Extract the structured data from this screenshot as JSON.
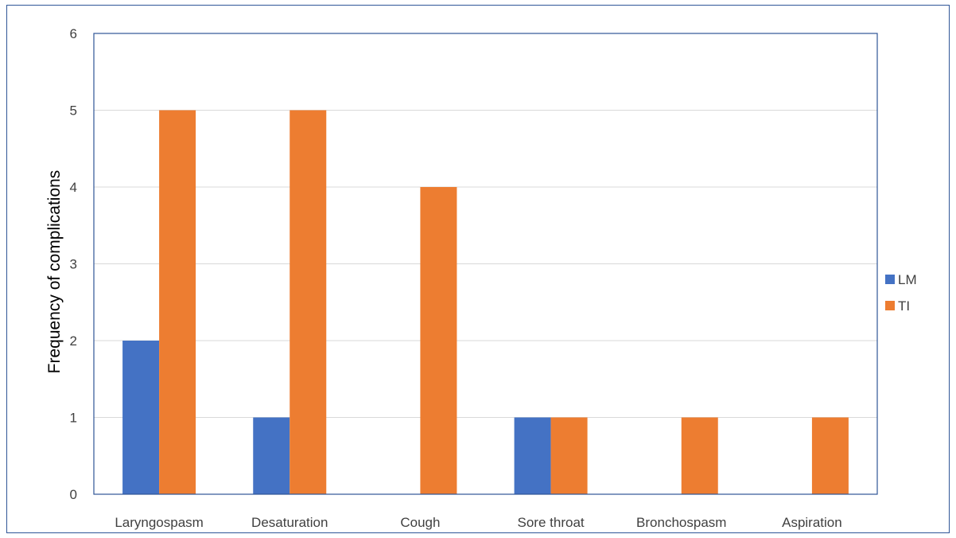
{
  "chart_data": {
    "type": "bar",
    "title": "",
    "xlabel": "",
    "ylabel": "Frequency of complications",
    "categories": [
      "Laryngospasm",
      "Desaturation",
      "Cough",
      "Sore throat",
      "Bronchospasm",
      "Aspiration"
    ],
    "series": [
      {
        "name": "LM",
        "values": [
          2,
          1,
          0,
          1,
          0,
          0
        ],
        "color": "#4472c4"
      },
      {
        "name": "TI",
        "values": [
          5,
          5,
          4,
          1,
          1,
          1
        ],
        "color": "#ed7d31"
      }
    ],
    "ylim": [
      0,
      6
    ],
    "yticks": [
      0,
      1,
      2,
      3,
      4,
      5,
      6
    ],
    "grid": true,
    "legend_position": "right"
  },
  "colors": {
    "frame_border": "#2f5597",
    "plot_border": "#2f5597",
    "gridline": "#d9d9d9"
  }
}
